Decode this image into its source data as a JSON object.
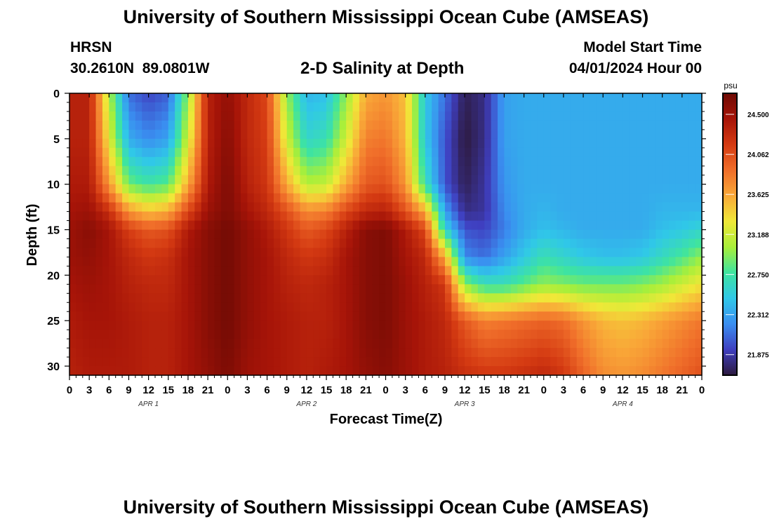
{
  "header": {
    "title": "University of Southern Mississippi Ocean Cube (AMSEAS)",
    "station": "HRSN",
    "coordinates": "30.2610N  89.0801W",
    "subtitle": "2-D Salinity at Depth",
    "start_label": "Model Start Time",
    "start_value": "04/01/2024 Hour 00"
  },
  "footer": {
    "title": "University of Southern Mississippi Ocean Cube (AMSEAS)"
  },
  "chart_data": {
    "type": "heatmap",
    "title": "2-D Salinity at Depth",
    "xlabel": "Forecast Time(Z)",
    "ylabel": "Depth (ft)",
    "x_range_hours": [
      0,
      96
    ],
    "y_range_ft": [
      0,
      31
    ],
    "y_inverted": true,
    "x_tick_labels": [
      "0",
      "3",
      "6",
      "9",
      "12",
      "15",
      "18",
      "21",
      "0",
      "3",
      "6",
      "9",
      "12",
      "15",
      "18",
      "21",
      "0",
      "3",
      "6",
      "9",
      "12",
      "15",
      "18",
      "21",
      "0",
      "3",
      "6",
      "9",
      "12",
      "15",
      "18",
      "21",
      "0"
    ],
    "y_ticks": [
      0,
      5,
      10,
      15,
      20,
      25,
      30
    ],
    "date_labels": [
      {
        "label": "APR 1",
        "hour": 12
      },
      {
        "label": "APR 2",
        "hour": 36
      },
      {
        "label": "APR 3",
        "hour": 60
      },
      {
        "label": "APR 4",
        "hour": 84
      }
    ],
    "colorbar": {
      "unit": "psu",
      "min": 21.65,
      "max": 24.73,
      "tick_values": [
        24.5,
        24.062,
        23.625,
        23.188,
        22.75,
        22.312,
        21.875
      ],
      "tick_labels": [
        "24.500",
        "24.062",
        "23.625",
        "23.188",
        "22.750",
        "22.312",
        "21.875"
      ],
      "stops": [
        "#2d1a3e",
        "#3f3fc0",
        "#3a8ef0",
        "#30c8e8",
        "#3ee4a0",
        "#a8ef3a",
        "#f0e838",
        "#f9a838",
        "#f06e2a",
        "#d43a12",
        "#a61408",
        "#6e0a04"
      ]
    },
    "salinity_psu": [
      [
        24.35,
        24.35,
        23.1,
        22.1,
        21.95,
        22.05,
        23.0,
        24.35,
        24.55,
        24.3,
        24.1,
        23.0,
        22.4,
        22.45,
        23.0,
        23.6,
        23.7,
        23.5,
        22.5,
        22.1,
        21.7,
        21.8,
        22.3,
        22.35,
        22.35,
        22.35,
        22.35,
        22.35,
        22.35,
        22.35,
        22.35,
        22.35,
        22.35
      ],
      [
        24.35,
        24.35,
        23.3,
        22.35,
        22.2,
        22.3,
        23.2,
        24.35,
        24.6,
        24.3,
        24.15,
        23.2,
        22.6,
        22.7,
        23.2,
        23.8,
        23.85,
        23.55,
        22.5,
        22.0,
        21.65,
        21.8,
        22.3,
        22.35,
        22.35,
        22.35,
        22.35,
        22.35,
        22.35,
        22.35,
        22.35,
        22.35,
        22.35
      ],
      [
        24.4,
        24.4,
        23.7,
        22.9,
        22.75,
        22.85,
        23.6,
        24.4,
        24.65,
        24.35,
        24.2,
        23.6,
        23.1,
        23.15,
        23.6,
        24.0,
        24.05,
        23.7,
        22.7,
        22.0,
        21.7,
        21.85,
        22.25,
        22.35,
        22.35,
        22.35,
        22.35,
        22.35,
        22.35,
        22.35,
        22.35,
        22.35,
        22.35
      ],
      [
        24.45,
        24.5,
        24.25,
        23.7,
        23.5,
        23.6,
        24.1,
        24.5,
        24.65,
        24.45,
        24.3,
        24.05,
        23.75,
        23.8,
        24.1,
        24.3,
        24.35,
        24.05,
        23.6,
        22.3,
        21.8,
        21.85,
        22.2,
        22.35,
        22.4,
        22.35,
        22.35,
        22.35,
        22.35,
        22.35,
        22.4,
        22.4,
        22.4
      ],
      [
        24.5,
        24.6,
        24.45,
        24.15,
        24.0,
        24.05,
        24.4,
        24.6,
        24.7,
        24.55,
        24.4,
        24.2,
        24.0,
        24.1,
        24.35,
        24.6,
        24.65,
        24.4,
        24.1,
        22.6,
        22.0,
        21.95,
        22.15,
        22.35,
        22.45,
        22.4,
        22.35,
        22.35,
        22.35,
        22.35,
        22.45,
        22.5,
        22.6
      ],
      [
        24.5,
        24.55,
        24.45,
        24.3,
        24.2,
        24.25,
        24.45,
        24.6,
        24.7,
        24.55,
        24.45,
        24.3,
        24.2,
        24.25,
        24.45,
        24.6,
        24.65,
        24.45,
        24.3,
        23.6,
        22.2,
        22.1,
        22.3,
        22.5,
        22.7,
        22.6,
        22.5,
        22.45,
        22.45,
        22.5,
        22.65,
        22.8,
        23.0
      ],
      [
        24.45,
        24.5,
        24.45,
        24.35,
        24.3,
        24.3,
        24.45,
        24.6,
        24.7,
        24.55,
        24.45,
        24.35,
        24.3,
        24.35,
        24.45,
        24.6,
        24.65,
        24.5,
        24.35,
        24.2,
        23.0,
        22.7,
        22.7,
        22.85,
        23.0,
        22.95,
        22.9,
        22.9,
        22.9,
        22.95,
        23.05,
        23.2,
        23.35
      ],
      [
        24.4,
        24.45,
        24.45,
        24.4,
        24.35,
        24.35,
        24.45,
        24.6,
        24.7,
        24.55,
        24.45,
        24.4,
        24.35,
        24.35,
        24.45,
        24.6,
        24.65,
        24.5,
        24.4,
        24.3,
        24.0,
        23.8,
        23.85,
        23.9,
        23.95,
        23.9,
        23.7,
        23.55,
        23.5,
        23.55,
        23.65,
        23.75,
        23.85
      ],
      [
        24.35,
        24.4,
        24.4,
        24.4,
        24.35,
        24.35,
        24.45,
        24.55,
        24.65,
        24.5,
        24.45,
        24.4,
        24.35,
        24.4,
        24.45,
        24.55,
        24.6,
        24.5,
        24.4,
        24.35,
        24.25,
        24.2,
        24.2,
        24.25,
        24.3,
        24.2,
        23.95,
        23.75,
        23.7,
        23.75,
        23.85,
        23.95,
        24.05
      ]
    ],
    "depth_rows_ft": [
      0,
      5,
      10,
      13,
      15,
      18,
      21,
      25,
      31
    ],
    "time_cols_hours": [
      0,
      3,
      6,
      9,
      12,
      15,
      18,
      21,
      24,
      27,
      30,
      33,
      36,
      39,
      42,
      45,
      48,
      51,
      54,
      57,
      60,
      63,
      66,
      69,
      72,
      75,
      78,
      81,
      84,
      87,
      90,
      93,
      96
    ]
  }
}
